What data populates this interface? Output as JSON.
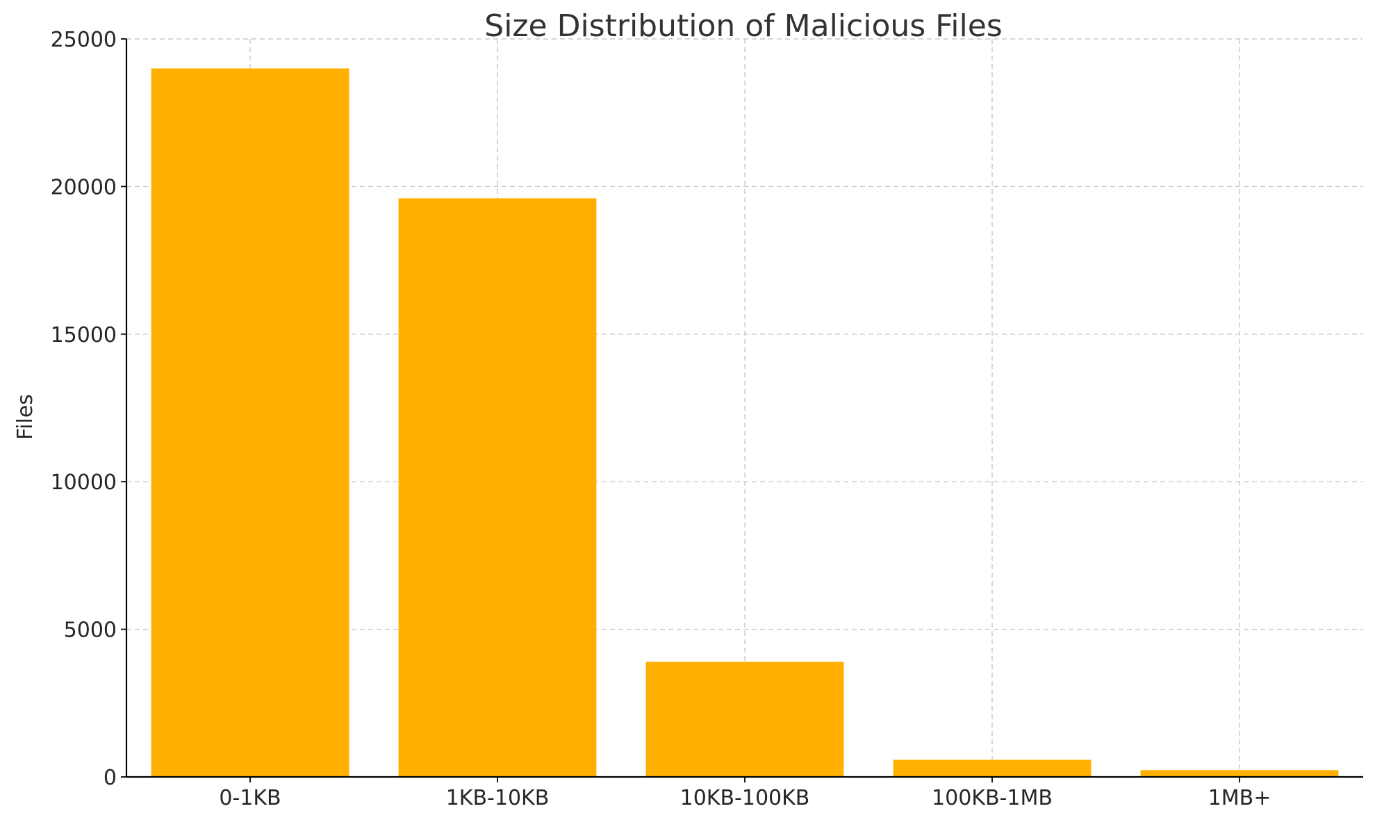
{
  "chart_data": {
    "type": "bar",
    "title": "Size Distribution of Malicious Files",
    "xlabel": "",
    "ylabel": "Files",
    "categories": [
      "0-1KB",
      "1KB-10KB",
      "10KB-100KB",
      "100KB-1MB",
      "1MB+"
    ],
    "values": [
      24000,
      19600,
      3900,
      580,
      230
    ],
    "ylim": [
      0,
      25000
    ],
    "yticks": [
      0,
      5000,
      10000,
      15000,
      20000,
      25000
    ],
    "bar_color": "#ffb000",
    "grid": true,
    "legend": "none"
  }
}
